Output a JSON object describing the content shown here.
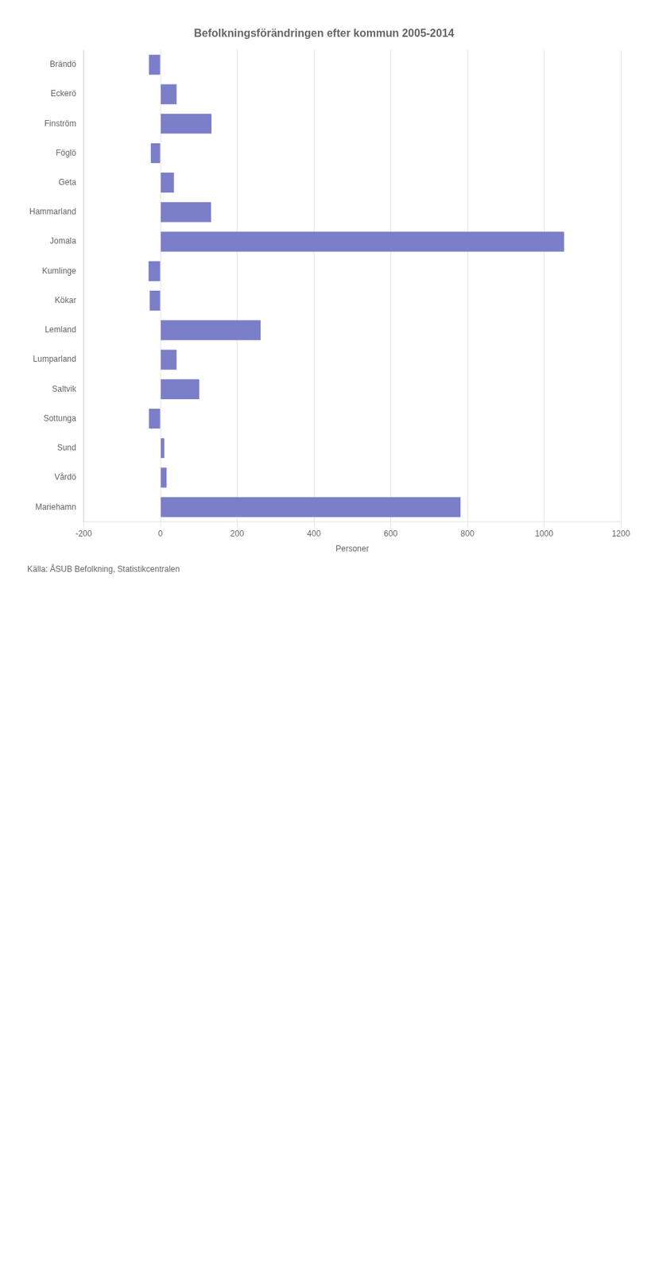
{
  "chart_data": {
    "type": "bar",
    "orientation": "horizontal",
    "title": "Befolkningsförändringen efter kommun 2005-2014",
    "categories": [
      "Brändö",
      "Eckerö",
      "Finström",
      "Föglö",
      "Geta",
      "Hammarland",
      "Jomala",
      "Kumlinge",
      "Kökar",
      "Lemland",
      "Lumparland",
      "Saltvik",
      "Sottunga",
      "Sund",
      "Vårdö",
      "Mariehamn"
    ],
    "values": [
      -30,
      42,
      133,
      -25,
      35,
      132,
      1052,
      -31,
      -28,
      261,
      42,
      101,
      -30,
      10,
      16,
      782
    ],
    "color": "#7b7ec8",
    "xlabel": "Personer",
    "xlim": [
      -200,
      1200
    ],
    "xticks": [
      -200,
      0,
      200,
      400,
      600,
      800,
      1000,
      1200
    ],
    "grid": true,
    "annotations": [
      "Källa: ÅSUB Befolkning, Statistikcentralen"
    ]
  }
}
